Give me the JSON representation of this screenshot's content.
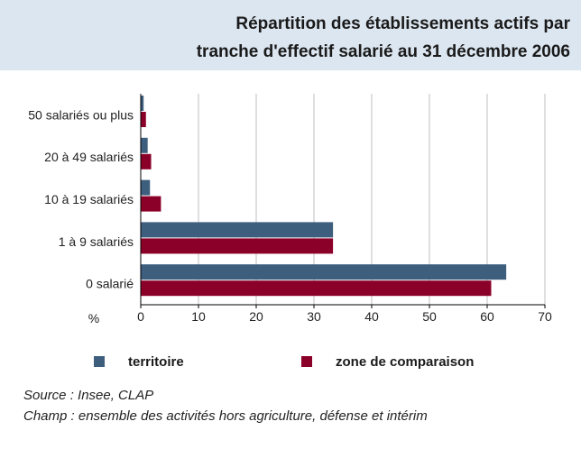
{
  "title": {
    "line1": "Répartition des établissements actifs par",
    "line2": "tranche d'effectif salarié  au 31 décembre 2006"
  },
  "colors": {
    "territoire": "#3e5e7e",
    "zone_de_comparaison": "#8b0029",
    "grid": "#bfbfbf",
    "axis": "#000000"
  },
  "chart_data": {
    "type": "bar",
    "orientation": "horizontal",
    "categories": [
      "50 salariés ou plus",
      "20 à 49 salariés",
      "10 à 19 salariés",
      "1 à 9 salariés",
      "0 salarié"
    ],
    "series": [
      {
        "name": "territoire",
        "values": [
          0.5,
          1.2,
          1.6,
          33.3,
          63.3
        ]
      },
      {
        "name": "zone de comparaison",
        "values": [
          0.9,
          1.8,
          3.5,
          33.3,
          60.7
        ]
      }
    ],
    "xlabel": "%",
    "xlim": [
      0,
      70
    ],
    "xticks": [
      0,
      10,
      20,
      30,
      40,
      50,
      60,
      70
    ],
    "grid": "vertical",
    "legend": "bottom"
  },
  "source": {
    "line1": "Source : Insee, CLAP",
    "line2": "Champ : ensemble des activités hors agriculture, défense et intérim"
  }
}
